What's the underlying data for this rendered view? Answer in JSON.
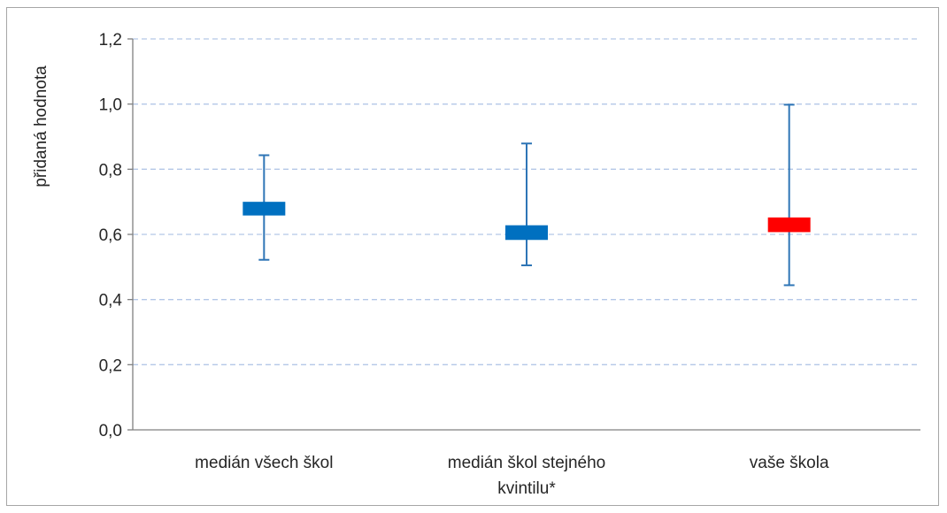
{
  "chart_data": {
    "type": "box",
    "title": "",
    "xlabel": "",
    "ylabel": "přidaná hodnota",
    "ylim": [
      0,
      1.2
    ],
    "yticks": [
      "0,0",
      "0,2",
      "0,4",
      "0,6",
      "0,8",
      "1,0",
      "1,2"
    ],
    "grid": true,
    "categories": [
      [
        "medián všech škol"
      ],
      [
        "medián škol stejného",
        "kvintilu*"
      ],
      [
        "vaše škola"
      ]
    ],
    "series": [
      {
        "values": [
          {
            "min": 0.522,
            "box_low": 0.658,
            "box_high": 0.7,
            "max": 0.843,
            "color": "#0070c0"
          },
          {
            "min": 0.505,
            "box_low": 0.583,
            "box_high": 0.628,
            "max": 0.879,
            "color": "#0070c0"
          },
          {
            "min": 0.444,
            "box_low": 0.607,
            "box_high": 0.652,
            "max": 0.998,
            "color": "#ff0000"
          }
        ]
      }
    ],
    "colors": {
      "whisker": "#2e75b6",
      "grid": "#b4c7e7",
      "axis": "#808080"
    }
  }
}
